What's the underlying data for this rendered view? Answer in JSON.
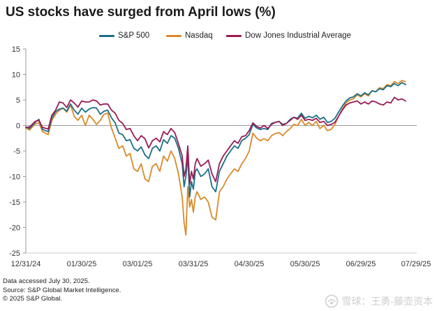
{
  "chart_data": {
    "type": "line",
    "title": "US stocks have surged from April lows (%)",
    "xlabel": "",
    "ylabel": "",
    "x_ticks": [
      "12/31/24",
      "01/30/25",
      "03/01/25",
      "03/31/25",
      "04/30/25",
      "05/30/25",
      "06/29/25",
      "07/29/25"
    ],
    "x_range_days": [
      0,
      210
    ],
    "ylim": [
      -25,
      15
    ],
    "y_ticks": [
      15,
      10,
      5,
      0,
      -5,
      -10,
      -15,
      -20,
      -25
    ],
    "grid": false,
    "legend": "top",
    "series": [
      {
        "name": "S&P 500",
        "color": "#1b6f86",
        "points": [
          [
            0,
            -0.3
          ],
          [
            2,
            -0.6
          ],
          [
            5,
            0.6
          ],
          [
            7,
            1.2
          ],
          [
            9,
            -0.8
          ],
          [
            12,
            -1.2
          ],
          [
            14,
            1.5
          ],
          [
            16,
            2.7
          ],
          [
            18,
            3.2
          ],
          [
            20,
            3.4
          ],
          [
            22,
            2.8
          ],
          [
            24,
            4.2
          ],
          [
            26,
            3.0
          ],
          [
            28,
            2.2
          ],
          [
            30,
            3.4
          ],
          [
            32,
            2.6
          ],
          [
            34,
            3.2
          ],
          [
            36,
            3.5
          ],
          [
            38,
            3.4
          ],
          [
            40,
            2.2
          ],
          [
            42,
            2.8
          ],
          [
            44,
            3.0
          ],
          [
            46,
            1.5
          ],
          [
            48,
            0.5
          ],
          [
            50,
            -1.5
          ],
          [
            52,
            -1.8
          ],
          [
            54,
            -3.0
          ],
          [
            56,
            -2.8
          ],
          [
            58,
            -4.5
          ],
          [
            60,
            -5.0
          ],
          [
            62,
            -4.2
          ],
          [
            64,
            -5.8
          ],
          [
            66,
            -6.5
          ],
          [
            68,
            -4.5
          ],
          [
            70,
            -4.0
          ],
          [
            72,
            -5.0
          ],
          [
            74,
            -2.8
          ],
          [
            76,
            -3.5
          ],
          [
            78,
            -2.0
          ],
          [
            80,
            -2.5
          ],
          [
            82,
            -4.5
          ],
          [
            84,
            -7.5
          ],
          [
            85,
            -12.0
          ],
          [
            86,
            -10.0
          ],
          [
            87,
            -6.0
          ],
          [
            88,
            -14.0
          ],
          [
            89,
            -11.0
          ],
          [
            90,
            -12.5
          ],
          [
            91,
            -9.0
          ],
          [
            92,
            -8.5
          ],
          [
            94,
            -10.0
          ],
          [
            96,
            -9.5
          ],
          [
            98,
            -8.5
          ],
          [
            100,
            -12.0
          ],
          [
            102,
            -13.0
          ],
          [
            104,
            -9.0
          ],
          [
            106,
            -7.5
          ],
          [
            108,
            -6.0
          ],
          [
            110,
            -5.0
          ],
          [
            112,
            -4.0
          ],
          [
            114,
            -4.5
          ],
          [
            116,
            -3.0
          ],
          [
            118,
            -2.5
          ],
          [
            120,
            -1.8
          ],
          [
            122,
            0.2
          ],
          [
            124,
            -0.5
          ],
          [
            126,
            -0.8
          ],
          [
            128,
            -0.6
          ],
          [
            130,
            -0.8
          ],
          [
            132,
            0.4
          ],
          [
            134,
            0.6
          ],
          [
            136,
            0.8
          ],
          [
            138,
            0.2
          ],
          [
            140,
            0.4
          ],
          [
            142,
            1.2
          ],
          [
            144,
            1.6
          ],
          [
            146,
            1.4
          ],
          [
            148,
            2.4
          ],
          [
            150,
            1.4
          ],
          [
            152,
            1.8
          ],
          [
            154,
            1.5
          ],
          [
            156,
            2.0
          ],
          [
            158,
            1.2
          ],
          [
            160,
            1.6
          ],
          [
            162,
            0.6
          ],
          [
            164,
            0.8
          ],
          [
            166,
            1.4
          ],
          [
            168,
            2.6
          ],
          [
            170,
            3.8
          ],
          [
            172,
            4.8
          ],
          [
            174,
            5.4
          ],
          [
            176,
            5.6
          ],
          [
            178,
            6.2
          ],
          [
            180,
            5.8
          ],
          [
            182,
            6.4
          ],
          [
            184,
            6.0
          ],
          [
            186,
            6.8
          ],
          [
            188,
            6.6
          ],
          [
            190,
            7.2
          ],
          [
            192,
            7.0
          ],
          [
            194,
            7.8
          ],
          [
            196,
            7.6
          ],
          [
            198,
            8.2
          ],
          [
            200,
            7.8
          ],
          [
            202,
            8.4
          ],
          [
            204,
            8.0
          ]
        ]
      },
      {
        "name": "Nasdaq",
        "color": "#d98a28",
        "points": [
          [
            0,
            -0.5
          ],
          [
            2,
            -0.9
          ],
          [
            5,
            0.3
          ],
          [
            7,
            0.5
          ],
          [
            9,
            -1.2
          ],
          [
            12,
            -1.8
          ],
          [
            14,
            1.0
          ],
          [
            16,
            2.2
          ],
          [
            18,
            3.0
          ],
          [
            20,
            3.4
          ],
          [
            22,
            2.6
          ],
          [
            24,
            4.0
          ],
          [
            26,
            1.8
          ],
          [
            28,
            1.0
          ],
          [
            30,
            2.0
          ],
          [
            32,
            0.0
          ],
          [
            34,
            2.0
          ],
          [
            36,
            1.2
          ],
          [
            38,
            0.2
          ],
          [
            40,
            1.0
          ],
          [
            42,
            2.2
          ],
          [
            44,
            2.4
          ],
          [
            46,
            -0.5
          ],
          [
            48,
            -2.5
          ],
          [
            50,
            -4.5
          ],
          [
            52,
            -4.0
          ],
          [
            54,
            -6.0
          ],
          [
            56,
            -5.5
          ],
          [
            58,
            -8.5
          ],
          [
            60,
            -9.0
          ],
          [
            62,
            -7.5
          ],
          [
            64,
            -10.5
          ],
          [
            66,
            -11.0
          ],
          [
            68,
            -8.0
          ],
          [
            70,
            -7.5
          ],
          [
            72,
            -9.0
          ],
          [
            74,
            -6.0
          ],
          [
            76,
            -7.0
          ],
          [
            78,
            -5.0
          ],
          [
            80,
            -6.5
          ],
          [
            82,
            -9.5
          ],
          [
            84,
            -14.0
          ],
          [
            85,
            -19.0
          ],
          [
            86,
            -21.5
          ],
          [
            87,
            -12.0
          ],
          [
            88,
            -16.0
          ],
          [
            89,
            -14.5
          ],
          [
            90,
            -17.0
          ],
          [
            91,
            -14.0
          ],
          [
            92,
            -13.0
          ],
          [
            94,
            -14.5
          ],
          [
            96,
            -14.0
          ],
          [
            98,
            -15.0
          ],
          [
            100,
            -18.0
          ],
          [
            102,
            -18.5
          ],
          [
            104,
            -13.0
          ],
          [
            106,
            -12.0
          ],
          [
            108,
            -10.5
          ],
          [
            110,
            -9.5
          ],
          [
            112,
            -8.5
          ],
          [
            114,
            -9.0
          ],
          [
            116,
            -7.5
          ],
          [
            118,
            -6.5
          ],
          [
            120,
            -5.0
          ],
          [
            122,
            -1.5
          ],
          [
            124,
            -2.5
          ],
          [
            126,
            -3.0
          ],
          [
            128,
            -2.6
          ],
          [
            130,
            -3.0
          ],
          [
            132,
            -2.0
          ],
          [
            134,
            -1.6
          ],
          [
            136,
            -1.4
          ],
          [
            138,
            -2.0
          ],
          [
            140,
            -1.2
          ],
          [
            142,
            -0.6
          ],
          [
            144,
            0.2
          ],
          [
            146,
            0.0
          ],
          [
            148,
            1.2
          ],
          [
            150,
            0.0
          ],
          [
            152,
            0.6
          ],
          [
            154,
            0.0
          ],
          [
            156,
            0.8
          ],
          [
            158,
            -0.6
          ],
          [
            160,
            0.0
          ],
          [
            162,
            -1.0
          ],
          [
            164,
            -0.8
          ],
          [
            166,
            0.2
          ],
          [
            168,
            1.8
          ],
          [
            170,
            3.2
          ],
          [
            172,
            4.4
          ],
          [
            174,
            5.0
          ],
          [
            176,
            5.2
          ],
          [
            178,
            6.0
          ],
          [
            180,
            5.6
          ],
          [
            182,
            6.2
          ],
          [
            184,
            5.8
          ],
          [
            186,
            6.8
          ],
          [
            188,
            6.6
          ],
          [
            190,
            7.4
          ],
          [
            192,
            7.2
          ],
          [
            194,
            8.0
          ],
          [
            196,
            7.8
          ],
          [
            198,
            8.6
          ],
          [
            200,
            8.2
          ],
          [
            202,
            8.8
          ],
          [
            204,
            8.6
          ]
        ]
      },
      {
        "name": "Dow Jones Industrial Average",
        "color": "#9a1b55",
        "points": [
          [
            0,
            -0.4
          ],
          [
            2,
            -0.3
          ],
          [
            5,
            0.8
          ],
          [
            7,
            1.0
          ],
          [
            9,
            -0.4
          ],
          [
            12,
            -0.7
          ],
          [
            14,
            2.0
          ],
          [
            16,
            3.0
          ],
          [
            18,
            4.6
          ],
          [
            20,
            4.4
          ],
          [
            22,
            3.5
          ],
          [
            24,
            5.0
          ],
          [
            26,
            4.4
          ],
          [
            28,
            3.6
          ],
          [
            30,
            4.8
          ],
          [
            32,
            4.6
          ],
          [
            34,
            4.6
          ],
          [
            36,
            5.0
          ],
          [
            38,
            4.8
          ],
          [
            40,
            4.0
          ],
          [
            42,
            4.2
          ],
          [
            44,
            4.2
          ],
          [
            46,
            3.0
          ],
          [
            48,
            2.4
          ],
          [
            50,
            1.0
          ],
          [
            52,
            0.4
          ],
          [
            54,
            -0.8
          ],
          [
            56,
            -0.6
          ],
          [
            58,
            -2.0
          ],
          [
            60,
            -3.0
          ],
          [
            62,
            -2.0
          ],
          [
            64,
            -2.6
          ],
          [
            66,
            -4.4
          ],
          [
            68,
            -3.0
          ],
          [
            70,
            -2.5
          ],
          [
            72,
            -3.2
          ],
          [
            74,
            -1.2
          ],
          [
            76,
            -1.8
          ],
          [
            78,
            -0.6
          ],
          [
            80,
            -1.4
          ],
          [
            82,
            -3.6
          ],
          [
            84,
            -6.0
          ],
          [
            85,
            -10.0
          ],
          [
            86,
            -8.5
          ],
          [
            87,
            -4.0
          ],
          [
            88,
            -11.5
          ],
          [
            89,
            -9.0
          ],
          [
            90,
            -10.5
          ],
          [
            91,
            -7.5
          ],
          [
            92,
            -6.5
          ],
          [
            94,
            -8.0
          ],
          [
            96,
            -7.5
          ],
          [
            98,
            -6.8
          ],
          [
            100,
            -9.5
          ],
          [
            102,
            -11.0
          ],
          [
            104,
            -7.5
          ],
          [
            106,
            -6.0
          ],
          [
            108,
            -5.0
          ],
          [
            110,
            -4.0
          ],
          [
            112,
            -3.0
          ],
          [
            114,
            -3.5
          ],
          [
            116,
            -2.2
          ],
          [
            118,
            -2.0
          ],
          [
            120,
            -1.0
          ],
          [
            122,
            0.5
          ],
          [
            124,
            -0.2
          ],
          [
            126,
            -0.5
          ],
          [
            128,
            0.0
          ],
          [
            130,
            -0.6
          ],
          [
            132,
            0.2
          ],
          [
            134,
            0.6
          ],
          [
            136,
            0.8
          ],
          [
            138,
            0.0
          ],
          [
            140,
            0.4
          ],
          [
            142,
            1.0
          ],
          [
            144,
            1.6
          ],
          [
            146,
            1.2
          ],
          [
            148,
            2.0
          ],
          [
            150,
            1.0
          ],
          [
            152,
            1.2
          ],
          [
            154,
            1.0
          ],
          [
            156,
            1.4
          ],
          [
            158,
            0.6
          ],
          [
            160,
            0.8
          ],
          [
            162,
            0.0
          ],
          [
            164,
            0.2
          ],
          [
            166,
            0.6
          ],
          [
            168,
            1.8
          ],
          [
            170,
            3.0
          ],
          [
            172,
            4.0
          ],
          [
            174,
            4.4
          ],
          [
            176,
            4.6
          ],
          [
            178,
            4.8
          ],
          [
            180,
            4.2
          ],
          [
            182,
            4.6
          ],
          [
            184,
            4.2
          ],
          [
            186,
            4.8
          ],
          [
            188,
            4.6
          ],
          [
            190,
            4.2
          ],
          [
            192,
            4.0
          ],
          [
            194,
            4.6
          ],
          [
            196,
            4.4
          ],
          [
            198,
            5.5
          ],
          [
            200,
            5.0
          ],
          [
            202,
            5.2
          ],
          [
            204,
            4.8
          ]
        ]
      }
    ]
  },
  "footer": {
    "line1": "Data accessed July 30, 2025.",
    "line2": "Source: S&P Global Market Intelligence.",
    "line3": "© 2025 S&P Global."
  },
  "watermark": {
    "text": "雪球：王勇-藤壶资本",
    "icon": "snowball-logo-icon"
  }
}
